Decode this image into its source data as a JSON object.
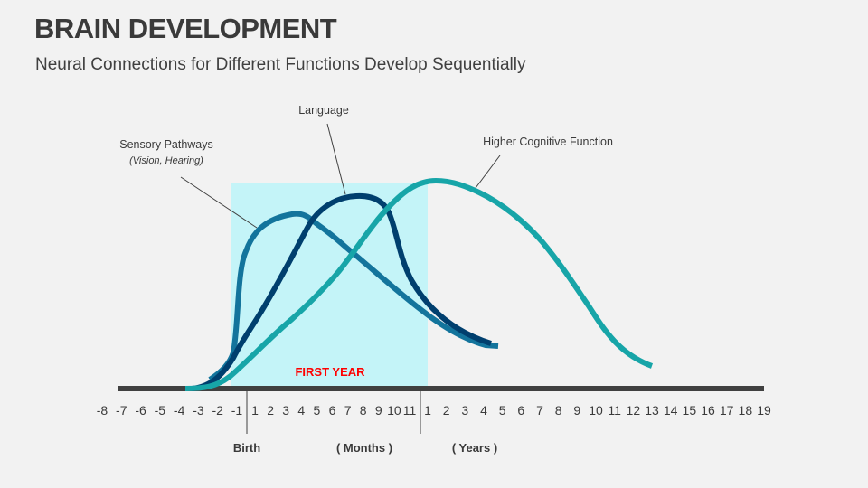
{
  "header": {
    "title": "BRAIN DEVELOPMENT",
    "subtitle": "Neural Connections for Different Functions Develop Sequentially"
  },
  "labels": {
    "sensory": "Sensory Pathways",
    "sensory_sub": "(Vision, Hearing)",
    "language": "Language",
    "higher": "Higher Cognitive Function",
    "first_year": "FIRST YEAR",
    "birth": "Birth",
    "months": "( Months )",
    "years": "( Years )"
  },
  "axis": {
    "prenatal": [
      "-8",
      "-7",
      "-6",
      "-5",
      "-4",
      "-3",
      "-2",
      "-1"
    ],
    "months": [
      "1",
      "2",
      "3",
      "4",
      "5",
      "6",
      "7",
      "8",
      "9",
      "10",
      "11"
    ],
    "years": [
      "1",
      "2",
      "3",
      "4",
      "5",
      "6",
      "7",
      "8",
      "9",
      "10",
      "11",
      "12",
      "13",
      "14",
      "15",
      "16",
      "17",
      "18",
      "19"
    ]
  },
  "colors": {
    "sensory": "#13749c",
    "language": "#003f6e",
    "higher": "#17a5a8",
    "first_year_band": "#c4f4f8",
    "first_year_text": "#ff0000",
    "axis": "#404040"
  }
}
